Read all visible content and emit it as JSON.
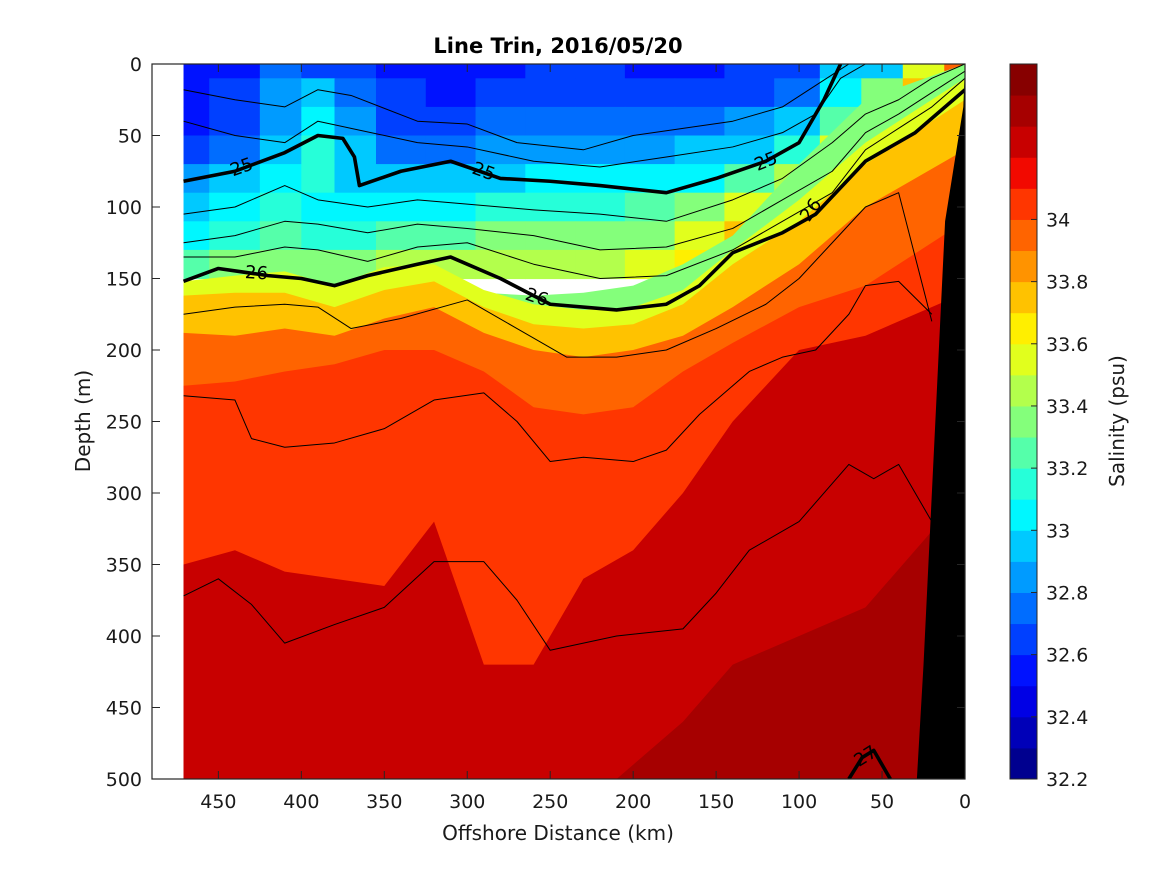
{
  "chart_data": {
    "type": "contour",
    "title": "Line Trin, 2016/05/20",
    "xlabel": "Offshore Distance (km)",
    "ylabel": "Depth (m)",
    "xlim": [
      490,
      0
    ],
    "ylim": [
      500,
      0
    ],
    "x_ticks": [
      "450",
      "400",
      "350",
      "300",
      "250",
      "200",
      "150",
      "100",
      "50",
      "0"
    ],
    "y_ticks": [
      "0",
      "50",
      "100",
      "150",
      "200",
      "250",
      "300",
      "350",
      "400",
      "450",
      "500"
    ],
    "colorbar": {
      "label": "Salinity (psu)",
      "range": [
        32.2,
        34.5
      ],
      "tick_labels": [
        "32.2",
        "32.4",
        "32.6",
        "32.8",
        "33",
        "33.2",
        "33.4",
        "33.6",
        "33.8",
        "34"
      ],
      "levels": [
        32.2,
        32.3,
        32.4,
        32.5,
        32.6,
        32.7,
        32.8,
        32.9,
        33.0,
        33.1,
        33.2,
        33.3,
        33.4,
        33.5,
        33.6,
        33.7,
        33.8,
        33.9,
        34.0,
        34.1,
        34.2,
        34.3,
        34.4,
        34.5
      ],
      "colors": [
        "#00008f",
        "#0000b8",
        "#0000e5",
        "#0012ff",
        "#0040ff",
        "#006dff",
        "#009bff",
        "#00c9ff",
        "#00f7ff",
        "#26ffd9",
        "#55ffaa",
        "#84ff7b",
        "#b3ff4c",
        "#e1ff1d",
        "#ffef00",
        "#ffc200",
        "#ff9300",
        "#ff6400",
        "#ff3600",
        "#f20900",
        "#c80000",
        "#a60000",
        "#870000"
      ]
    },
    "data_extent_km": [
      471,
      0
    ],
    "shelf_color": "#000000",
    "salinity_bands": [
      {
        "salinity": 33.3,
        "depth_m": [
          200,
          165,
          140,
          140,
          145,
          150,
          160,
          162,
          160,
          155,
          140,
          120,
          70,
          25,
          0
        ]
      },
      {
        "salinity": 33.5,
        "depth_m": [
          152,
          148,
          145,
          155,
          142,
          140,
          158,
          168,
          172,
          170,
          158,
          130,
          95,
          55,
          10
        ]
      },
      {
        "salinity": 33.7,
        "depth_m": [
          162,
          160,
          160,
          170,
          158,
          152,
          170,
          182,
          185,
          182,
          168,
          140,
          110,
          70,
          25
        ]
      },
      {
        "salinity": 33.9,
        "depth_m": [
          188,
          190,
          185,
          190,
          178,
          170,
          188,
          200,
          205,
          200,
          190,
          170,
          140,
          100,
          60
        ]
      },
      {
        "salinity": 34.05,
        "depth_m": [
          225,
          222,
          215,
          210,
          200,
          200,
          215,
          240,
          245,
          240,
          215,
          195,
          170,
          155,
          110
        ]
      },
      {
        "salinity": 34.2,
        "depth_m": [
          350,
          340,
          355,
          360,
          365,
          320,
          420,
          420,
          360,
          340,
          300,
          250,
          200,
          190,
          160
        ]
      },
      {
        "salinity": 34.35,
        "depth_m": [
          520,
          520,
          520,
          520,
          520,
          520,
          520,
          520,
          520,
          490,
          460,
          420,
          400,
          380,
          300
        ]
      }
    ],
    "density_contours": [
      {
        "level": 25,
        "label": "25",
        "bold": true,
        "x_km": [
          471,
          440,
          410,
          390,
          375,
          368,
          365,
          340,
          310,
          280,
          250,
          220,
          180,
          150,
          120,
          100,
          85,
          75
        ],
        "depth_m": [
          82,
          75,
          62,
          50,
          52,
          65,
          85,
          75,
          68,
          80,
          82,
          85,
          90,
          80,
          68,
          55,
          25,
          0
        ]
      },
      {
        "level": 26,
        "label": "26",
        "bold": true,
        "x_km": [
          471,
          450,
          420,
          400,
          380,
          360,
          330,
          310,
          280,
          250,
          210,
          180,
          160,
          140,
          110,
          90,
          60,
          30,
          0
        ],
        "depth_m": [
          152,
          143,
          148,
          150,
          155,
          148,
          140,
          135,
          150,
          168,
          172,
          168,
          155,
          132,
          118,
          105,
          68,
          48,
          18
        ]
      },
      {
        "level": 27,
        "label": "27",
        "bold": true,
        "x_km": [
          70,
          62,
          55,
          45
        ],
        "depth_m": [
          500,
          485,
          480,
          500
        ]
      },
      {
        "level": 24.5,
        "label": "",
        "bold": false,
        "x_km": [
          471,
          440,
          410,
          390,
          370,
          330,
          300,
          270,
          230,
          200,
          170,
          140,
          110,
          90,
          70,
          50
        ],
        "depth_m": [
          18,
          25,
          30,
          18,
          22,
          40,
          42,
          55,
          60,
          50,
          45,
          40,
          30,
          15,
          0,
          0
        ]
      },
      {
        "level": 24.75,
        "label": "",
        "bold": false,
        "x_km": [
          471,
          440,
          410,
          390,
          370,
          330,
          300,
          260,
          220,
          180,
          140,
          110,
          90,
          75,
          60
        ],
        "depth_m": [
          40,
          50,
          55,
          40,
          45,
          55,
          58,
          68,
          72,
          65,
          58,
          48,
          35,
          10,
          0
        ]
      },
      {
        "level": 25.25,
        "label": "",
        "bold": false,
        "x_km": [
          471,
          440,
          410,
          390,
          360,
          330,
          300,
          260,
          220,
          180,
          140,
          110,
          80,
          60,
          40,
          20,
          0
        ],
        "depth_m": [
          105,
          100,
          85,
          95,
          100,
          95,
          98,
          102,
          105,
          110,
          95,
          80,
          55,
          35,
          25,
          10,
          0
        ]
      },
      {
        "level": 25.5,
        "label": "",
        "bold": false,
        "x_km": [
          471,
          440,
          410,
          390,
          360,
          330,
          300,
          260,
          220,
          180,
          140,
          110,
          80,
          60,
          40,
          20,
          0
        ],
        "depth_m": [
          125,
          120,
          110,
          112,
          118,
          112,
          115,
          120,
          130,
          128,
          115,
          95,
          75,
          48,
          35,
          20,
          5
        ]
      },
      {
        "level": 25.75,
        "label": "",
        "bold": false,
        "x_km": [
          471,
          440,
          410,
          390,
          360,
          330,
          300,
          260,
          220,
          180,
          140,
          110,
          80,
          60,
          40,
          20,
          0
        ],
        "depth_m": [
          135,
          135,
          128,
          130,
          138,
          128,
          125,
          140,
          150,
          148,
          130,
          110,
          90,
          60,
          45,
          30,
          10
        ]
      },
      {
        "level": 26.25,
        "label": "",
        "bold": false,
        "x_km": [
          471,
          440,
          410,
          390,
          370,
          340,
          300,
          270,
          240,
          210,
          180,
          150,
          120,
          100,
          80,
          60,
          40,
          20
        ],
        "depth_m": [
          175,
          170,
          168,
          170,
          185,
          178,
          165,
          185,
          205,
          205,
          200,
          185,
          168,
          150,
          125,
          100,
          90,
          180
        ]
      },
      {
        "level": 26.5,
        "label": "",
        "bold": false,
        "x_km": [
          471,
          440,
          430,
          410,
          380,
          350,
          320,
          290,
          270,
          250,
          230,
          200,
          180,
          160,
          130,
          110,
          90,
          70,
          60,
          40,
          20
        ],
        "depth_m": [
          232,
          235,
          262,
          268,
          265,
          255,
          235,
          230,
          250,
          278,
          275,
          278,
          270,
          245,
          215,
          205,
          200,
          175,
          155,
          152,
          175
        ]
      },
      {
        "level": 26.75,
        "label": "",
        "bold": false,
        "x_km": [
          471,
          450,
          430,
          410,
          380,
          350,
          320,
          290,
          270,
          250,
          210,
          170,
          150,
          130,
          100,
          70,
          55,
          40,
          20
        ],
        "depth_m": [
          372,
          360,
          378,
          405,
          392,
          380,
          348,
          348,
          375,
          410,
          400,
          395,
          370,
          340,
          320,
          280,
          290,
          280,
          320
        ]
      }
    ]
  }
}
